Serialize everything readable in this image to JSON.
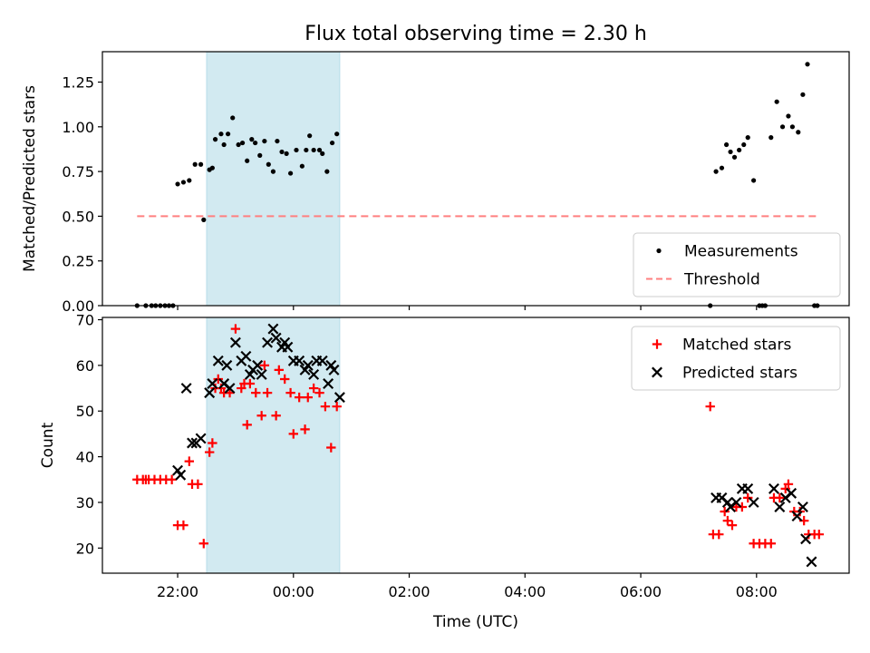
{
  "chart_data": {
    "title": "Flux total observing time = 2.30 h",
    "xlabel": "Time (UTC)",
    "x_unit": "hours relative to 00:00 UTC",
    "xlim": [
      -3.3,
      9.6
    ],
    "xticks": [
      {
        "value": -2,
        "label": "22:00"
      },
      {
        "value": 0,
        "label": "00:00"
      },
      {
        "value": 2,
        "label": "02:00"
      },
      {
        "value": 4,
        "label": "04:00"
      },
      {
        "value": 6,
        "label": "06:00"
      },
      {
        "value": 8,
        "label": "08:00"
      }
    ],
    "highlight": {
      "x": [
        -1.5,
        0.8
      ],
      "color": "#add8e6"
    },
    "panels": [
      {
        "type": "scatter",
        "ylabel": "Matched/Predicted stars",
        "ylim": [
          0,
          1.42
        ],
        "yticks": [
          "0.00",
          "0.25",
          "0.50",
          "0.75",
          "1.00",
          "1.25"
        ],
        "legend_position": "lower-right",
        "series": [
          {
            "name": "Measurements",
            "marker": "dot",
            "color": "#000000",
            "points": [
              [
                -2.7,
                0
              ],
              [
                -2.55,
                0
              ],
              [
                -2.45,
                0
              ],
              [
                -2.38,
                0
              ],
              [
                -2.3,
                0
              ],
              [
                -2.22,
                0
              ],
              [
                -2.15,
                0
              ],
              [
                -2.08,
                0
              ],
              [
                -2.0,
                0.68
              ],
              [
                -1.9,
                0.69
              ],
              [
                -1.8,
                0.7
              ],
              [
                -1.7,
                0.79
              ],
              [
                -1.6,
                0.79
              ],
              [
                -1.55,
                0.48
              ],
              [
                -1.45,
                0.76
              ],
              [
                -1.4,
                0.77
              ],
              [
                -1.35,
                0.93
              ],
              [
                -1.25,
                0.96
              ],
              [
                -1.2,
                0.9
              ],
              [
                -1.13,
                0.96
              ],
              [
                -1.05,
                1.05
              ],
              [
                -0.95,
                0.9
              ],
              [
                -0.88,
                0.91
              ],
              [
                -0.8,
                0.81
              ],
              [
                -0.72,
                0.93
              ],
              [
                -0.66,
                0.91
              ],
              [
                -0.58,
                0.84
              ],
              [
                -0.5,
                0.92
              ],
              [
                -0.43,
                0.79
              ],
              [
                -0.35,
                0.75
              ],
              [
                -0.28,
                0.92
              ],
              [
                -0.2,
                0.86
              ],
              [
                -0.12,
                0.85
              ],
              [
                -0.05,
                0.74
              ],
              [
                0.05,
                0.87
              ],
              [
                0.15,
                0.78
              ],
              [
                0.22,
                0.87
              ],
              [
                0.28,
                0.95
              ],
              [
                0.35,
                0.87
              ],
              [
                0.45,
                0.87
              ],
              [
                0.5,
                0.85
              ],
              [
                0.58,
                0.75
              ],
              [
                0.67,
                0.91
              ],
              [
                0.75,
                0.96
              ],
              [
                7.2,
                0
              ],
              [
                7.3,
                0.75
              ],
              [
                7.4,
                0.77
              ],
              [
                7.48,
                0.9
              ],
              [
                7.55,
                0.86
              ],
              [
                7.62,
                0.83
              ],
              [
                7.7,
                0.87
              ],
              [
                7.78,
                0.9
              ],
              [
                7.85,
                0.94
              ],
              [
                7.95,
                0.7
              ],
              [
                8.05,
                0
              ],
              [
                8.1,
                0
              ],
              [
                8.15,
                0
              ],
              [
                8.25,
                0.94
              ],
              [
                8.35,
                1.14
              ],
              [
                8.45,
                1.0
              ],
              [
                8.55,
                1.06
              ],
              [
                8.62,
                1.0
              ],
              [
                8.72,
                0.97
              ],
              [
                8.8,
                1.18
              ],
              [
                8.88,
                1.35
              ],
              [
                9.0,
                0
              ],
              [
                9.05,
                0
              ]
            ]
          },
          {
            "name": "Threshold",
            "marker": "dashed-line",
            "color": "#ff7f7f",
            "points": [
              [
                -2.7,
                0.5
              ],
              [
                9.05,
                0.5
              ]
            ]
          }
        ]
      },
      {
        "type": "scatter",
        "ylabel": "Count",
        "ylim": [
          14.5,
          70.5
        ],
        "yticks": [
          "20",
          "30",
          "40",
          "50",
          "60",
          "70"
        ],
        "legend_position": "upper-right",
        "series": [
          {
            "name": "Matched stars",
            "marker": "plus",
            "color": "#ff0000",
            "points": [
              [
                -2.7,
                35
              ],
              [
                -2.6,
                35
              ],
              [
                -2.55,
                35
              ],
              [
                -2.5,
                35
              ],
              [
                -2.4,
                35
              ],
              [
                -2.3,
                35
              ],
              [
                -2.2,
                35
              ],
              [
                -2.1,
                35
              ],
              [
                -2.0,
                25
              ],
              [
                -1.9,
                25
              ],
              [
                -1.8,
                39
              ],
              [
                -1.75,
                34
              ],
              [
                -1.65,
                34
              ],
              [
                -1.55,
                21
              ],
              [
                -1.45,
                41
              ],
              [
                -1.4,
                43
              ],
              [
                -1.35,
                55
              ],
              [
                -1.3,
                57
              ],
              [
                -1.25,
                55
              ],
              [
                -1.2,
                54
              ],
              [
                -1.1,
                54
              ],
              [
                -1.0,
                68
              ],
              [
                -0.9,
                55
              ],
              [
                -0.85,
                56
              ],
              [
                -0.8,
                47
              ],
              [
                -0.75,
                56
              ],
              [
                -0.65,
                54
              ],
              [
                -0.55,
                49
              ],
              [
                -0.5,
                60
              ],
              [
                -0.45,
                54
              ],
              [
                -0.3,
                49
              ],
              [
                -0.25,
                59
              ],
              [
                -0.15,
                57
              ],
              [
                -0.05,
                54
              ],
              [
                0.0,
                45
              ],
              [
                0.1,
                53
              ],
              [
                0.2,
                46
              ],
              [
                0.25,
                53
              ],
              [
                0.35,
                55
              ],
              [
                0.45,
                54
              ],
              [
                0.55,
                51
              ],
              [
                0.65,
                42
              ],
              [
                0.75,
                51
              ],
              [
                7.2,
                51
              ],
              [
                7.25,
                23
              ],
              [
                7.35,
                23
              ],
              [
                7.45,
                28
              ],
              [
                7.5,
                26
              ],
              [
                7.58,
                25
              ],
              [
                7.65,
                29
              ],
              [
                7.75,
                29
              ],
              [
                7.85,
                31
              ],
              [
                7.95,
                21
              ],
              [
                8.05,
                21
              ],
              [
                8.15,
                21
              ],
              [
                8.25,
                21
              ],
              [
                8.3,
                31
              ],
              [
                8.4,
                31
              ],
              [
                8.5,
                33
              ],
              [
                8.55,
                34
              ],
              [
                8.65,
                28
              ],
              [
                8.75,
                28
              ],
              [
                8.82,
                26
              ],
              [
                8.9,
                23
              ],
              [
                9.0,
                23
              ],
              [
                9.08,
                23
              ]
            ]
          },
          {
            "name": "Predicted stars",
            "marker": "x",
            "color": "#000000",
            "points": [
              [
                -2.0,
                37
              ],
              [
                -1.95,
                36
              ],
              [
                -1.85,
                55
              ],
              [
                -1.75,
                43
              ],
              [
                -1.68,
                43
              ],
              [
                -1.6,
                44
              ],
              [
                -1.45,
                54
              ],
              [
                -1.4,
                56
              ],
              [
                -1.3,
                61
              ],
              [
                -1.2,
                56
              ],
              [
                -1.15,
                60
              ],
              [
                -1.1,
                55
              ],
              [
                -1.0,
                65
              ],
              [
                -0.9,
                61
              ],
              [
                -0.82,
                62
              ],
              [
                -0.75,
                58
              ],
              [
                -0.7,
                59
              ],
              [
                -0.62,
                60
              ],
              [
                -0.55,
                58
              ],
              [
                -0.45,
                65
              ],
              [
                -0.35,
                68
              ],
              [
                -0.3,
                66
              ],
              [
                -0.2,
                64
              ],
              [
                -0.15,
                65
              ],
              [
                -0.1,
                64
              ],
              [
                0.0,
                61
              ],
              [
                0.1,
                61
              ],
              [
                0.2,
                59
              ],
              [
                0.25,
                60
              ],
              [
                0.35,
                58
              ],
              [
                0.4,
                61
              ],
              [
                0.5,
                61
              ],
              [
                0.6,
                56
              ],
              [
                0.65,
                60
              ],
              [
                0.7,
                59
              ],
              [
                0.8,
                53
              ],
              [
                7.3,
                31
              ],
              [
                7.4,
                31
              ],
              [
                7.5,
                30
              ],
              [
                7.55,
                29
              ],
              [
                7.65,
                30
              ],
              [
                7.75,
                33
              ],
              [
                7.85,
                33
              ],
              [
                7.95,
                30
              ],
              [
                8.3,
                33
              ],
              [
                8.4,
                29
              ],
              [
                8.5,
                31
              ],
              [
                8.6,
                32
              ],
              [
                8.7,
                27
              ],
              [
                8.8,
                29
              ],
              [
                8.85,
                22
              ],
              [
                8.95,
                17
              ]
            ]
          }
        ]
      }
    ]
  }
}
